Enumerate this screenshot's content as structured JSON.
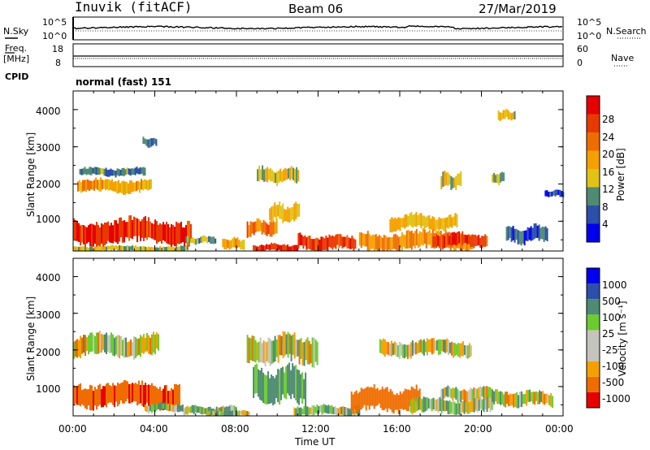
{
  "header": {
    "station": "Inuvik (fitACF)",
    "beam": "Beam 06",
    "date": "27/Mar/2019"
  },
  "strip": {
    "nsky_label": "N.Sky",
    "nsearch_label": "N.Search",
    "nsky_ticks": [
      "10^5",
      "10^0"
    ],
    "nsearch_ticks": [
      "10^5",
      "10^0"
    ],
    "freq_label_1": "Freq.",
    "freq_label_2": "[MHz]",
    "freq_ticks": [
      "18",
      "8"
    ],
    "nave_label": "Nave",
    "nave_ticks": [
      "60",
      "0"
    ],
    "cpid_label": "CPID",
    "cpid_value": "normal (fast) 151"
  },
  "colors": {
    "power": [
      "#0000ee",
      "#2b4faa",
      "#4f8a72",
      "#e1c215",
      "#f5a000",
      "#ef6d00",
      "#e83a00",
      "#e60000"
    ],
    "velocity": [
      "#e60000",
      "#ef6d00",
      "#f5a000",
      "#c4c4bc",
      "#c4c4bc",
      "#6bcc2e",
      "#4f8a72",
      "#2b4faa",
      "#0000ee"
    ]
  },
  "chart_data": [
    {
      "type": "heatmap",
      "ylabel": "Slant Range [km]",
      "xlabel": "",
      "x_ticks": [
        "00:00",
        "04:00",
        "08:00",
        "12:00",
        "16:00",
        "20:00",
        "00:00"
      ],
      "y_ticks": [
        "1000",
        "2000",
        "3000",
        "4000"
      ],
      "xlim": [
        0,
        24
      ],
      "ylim": [
        200,
        4500
      ],
      "colorbar_label": "Power [dB]",
      "colorbar_ticks": [
        "4",
        "8",
        "12",
        "16",
        "20",
        "24",
        "28"
      ],
      "colorbar_range": [
        0,
        32
      ],
      "regions": [
        {
          "t": [
            0.0,
            5.8
          ],
          "r": [
            350,
            1080
          ],
          "value": 27
        },
        {
          "t": [
            0.0,
            5.6
          ],
          "r": [
            180,
            350
          ],
          "value": 13
        },
        {
          "t": [
            0.2,
            3.8
          ],
          "r": [
            1750,
            2150
          ],
          "value": 18
        },
        {
          "t": [
            0.3,
            3.5
          ],
          "r": [
            2200,
            2450
          ],
          "value": 9
        },
        {
          "t": [
            3.4,
            4.1
          ],
          "r": [
            3000,
            3250
          ],
          "value": 8
        },
        {
          "t": [
            5.5,
            7.0
          ],
          "r": [
            380,
            600
          ],
          "value": 11
        },
        {
          "t": [
            7.3,
            8.4
          ],
          "r": [
            250,
            550
          ],
          "value": 17
        },
        {
          "t": [
            8.8,
            11.0
          ],
          "r": [
            180,
            400
          ],
          "value": 28
        },
        {
          "t": [
            8.5,
            10.0
          ],
          "r": [
            600,
            1050
          ],
          "value": 23
        },
        {
          "t": [
            9.6,
            11.1
          ],
          "r": [
            950,
            1500
          ],
          "value": 16
        },
        {
          "t": [
            9.0,
            11.0
          ],
          "r": [
            2000,
            2450
          ],
          "value": 14
        },
        {
          "t": [
            11.0,
            13.8
          ],
          "r": [
            200,
            650
          ],
          "value": 26
        },
        {
          "t": [
            14.0,
            19.5
          ],
          "r": [
            200,
            750
          ],
          "value": 20
        },
        {
          "t": [
            17.6,
            20.3
          ],
          "r": [
            300,
            700
          ],
          "value": 27
        },
        {
          "t": [
            15.5,
            18.8
          ],
          "r": [
            750,
            1200
          ],
          "value": 16
        },
        {
          "t": [
            18.0,
            19.0
          ],
          "r": [
            1850,
            2350
          ],
          "value": 14
        },
        {
          "t": [
            20.5,
            21.1
          ],
          "r": [
            2000,
            2300
          ],
          "value": 10
        },
        {
          "t": [
            21.2,
            23.2
          ],
          "r": [
            400,
            900
          ],
          "value": 6
        },
        {
          "t": [
            23.1,
            24.0
          ],
          "r": [
            1650,
            1850
          ],
          "value": 6
        },
        {
          "t": [
            20.8,
            21.6
          ],
          "r": [
            3700,
            4000
          ],
          "value": 15
        }
      ]
    },
    {
      "type": "heatmap",
      "ylabel": "Slant Range [km]",
      "xlabel": "Time UT",
      "x_ticks": [
        "00:00",
        "04:00",
        "08:00",
        "12:00",
        "16:00",
        "20:00",
        "00:00"
      ],
      "y_ticks": [
        "1000",
        "2000",
        "3000",
        "4000"
      ],
      "xlim": [
        0,
        24
      ],
      "ylim": [
        200,
        4500
      ],
      "colorbar_label": "Velocity [m s⁻¹]",
      "colorbar_ticks": [
        "1000",
        "500",
        "100",
        "25",
        "-25",
        "-100",
        "-500",
        "-1000"
      ],
      "colorbar_range": [
        -1000,
        1000
      ],
      "regions": [
        {
          "t": [
            0.0,
            5.2
          ],
          "r": [
            400,
            1150
          ],
          "value": -400
        },
        {
          "t": [
            3.5,
            5.4
          ],
          "r": [
            300,
            550
          ],
          "value": 60
        },
        {
          "t": [
            0.0,
            4.2
          ],
          "r": [
            1800,
            2450
          ],
          "value": 0
        },
        {
          "t": [
            5.4,
            8.0
          ],
          "r": [
            200,
            480
          ],
          "value": 70
        },
        {
          "t": [
            6.5,
            8.6
          ],
          "r": [
            180,
            350
          ],
          "value": 60
        },
        {
          "t": [
            8.8,
            11.4
          ],
          "r": [
            500,
            1550
          ],
          "value": 200
        },
        {
          "t": [
            8.5,
            12.0
          ],
          "r": [
            1600,
            2450
          ],
          "value": 0
        },
        {
          "t": [
            10.8,
            14.0
          ],
          "r": [
            200,
            500
          ],
          "value": 80
        },
        {
          "t": [
            13.6,
            17.0
          ],
          "r": [
            300,
            1000
          ],
          "value": -300
        },
        {
          "t": [
            16.5,
            20.5
          ],
          "r": [
            250,
            700
          ],
          "value": 70
        },
        {
          "t": [
            18.0,
            20.5
          ],
          "r": [
            600,
            1000
          ],
          "value": 0
        },
        {
          "t": [
            20.5,
            23.5
          ],
          "r": [
            450,
            900
          ],
          "value": 5
        },
        {
          "t": [
            15.0,
            19.5
          ],
          "r": [
            1800,
            2300
          ],
          "value": 0
        }
      ]
    }
  ]
}
